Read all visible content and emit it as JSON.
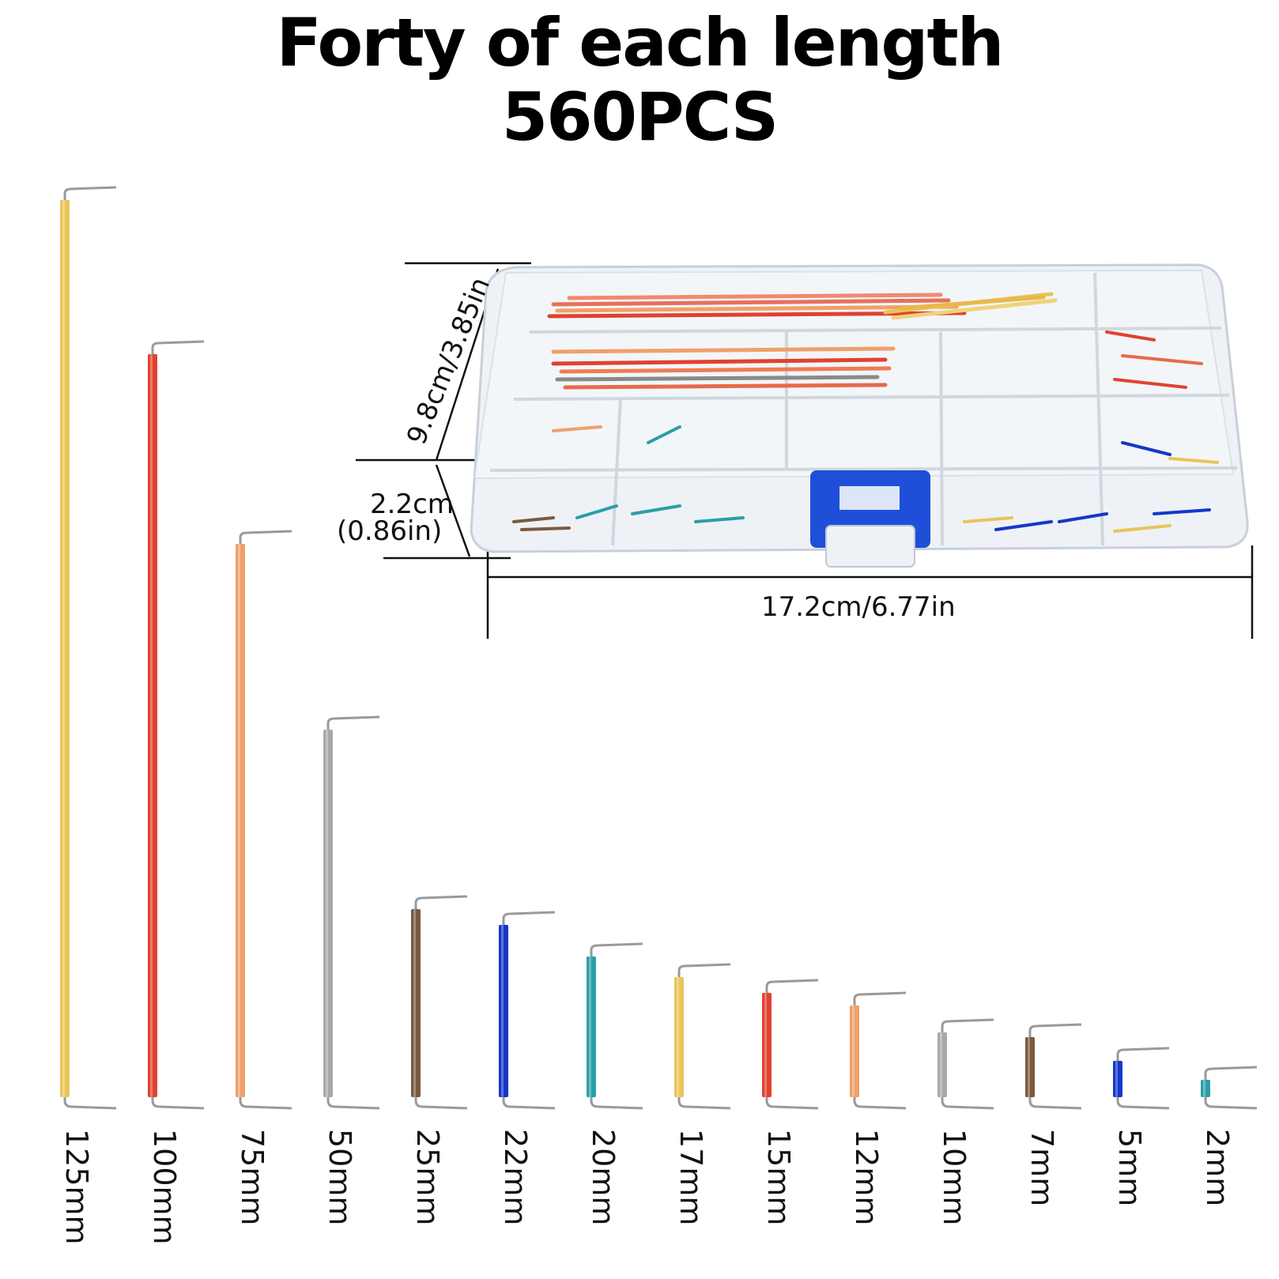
{
  "header": {
    "title_line1": "Forty of each length",
    "title_line2": "560PCS"
  },
  "dimensions": {
    "depth_label": "9.8cm/3.85in",
    "height_label_cm": "2.2cm",
    "height_label_in": "(0.86in)",
    "width_label": "17.2cm/6.77in"
  },
  "wires": [
    {
      "label": "125mm",
      "color": "#e9c45a",
      "length_mm": 125
    },
    {
      "label": "100mm",
      "color": "#e0422f",
      "length_mm": 100
    },
    {
      "label": "75mm",
      "color": "#f0a06a",
      "length_mm": 75
    },
    {
      "label": "50mm",
      "color": "#a8a8a8",
      "length_mm": 50
    },
    {
      "label": "25mm",
      "color": "#7a5a40",
      "length_mm": 25
    },
    {
      "label": "22mm",
      "color": "#1538c8",
      "length_mm": 22
    },
    {
      "label": "20mm",
      "color": "#2a9fa8",
      "length_mm": 20
    },
    {
      "label": "17mm",
      "color": "#e9c45a",
      "length_mm": 17
    },
    {
      "label": "15mm",
      "color": "#e0422f",
      "length_mm": 15
    },
    {
      "label": "12mm",
      "color": "#f0a06a",
      "length_mm": 12
    },
    {
      "label": "10mm",
      "color": "#a8a8a8",
      "length_mm": 10
    },
    {
      "label": "7mm",
      "color": "#7a5a40",
      "length_mm": 7
    },
    {
      "label": "5mm",
      "color": "#1538c8",
      "length_mm": 5
    },
    {
      "label": "2mm",
      "color": "#2a9fa8",
      "length_mm": 2
    }
  ],
  "colors": {
    "box_clasp": "#1f4fd8",
    "box_plastic": "#e9eef3"
  }
}
